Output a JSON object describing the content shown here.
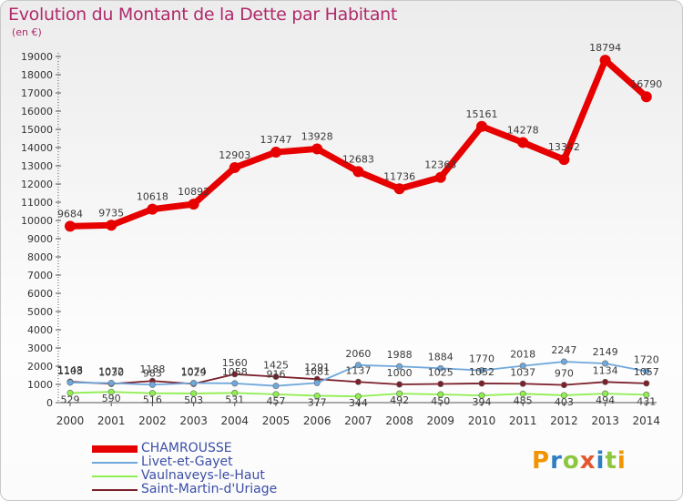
{
  "header": {
    "title": "Evolution du Montant de la Dette par Habitant",
    "unit": "(en €)"
  },
  "logo": {
    "text": "Proxiti",
    "colors": [
      "#f29400",
      "#2f7fc2",
      "#8dc63f",
      "#e4572e",
      "#2f7fc2",
      "#8dc63f",
      "#f29400"
    ]
  },
  "chart_data": {
    "type": "line",
    "x": [
      2000,
      2001,
      2002,
      2003,
      2004,
      2005,
      2006,
      2007,
      2008,
      2009,
      2010,
      2011,
      2012,
      2013,
      2014
    ],
    "ylim": [
      0,
      19000
    ],
    "yticks": [
      0,
      1000,
      2000,
      3000,
      4000,
      5000,
      6000,
      7000,
      8000,
      9000,
      10000,
      11000,
      12000,
      13000,
      14000,
      15000,
      16000,
      17000,
      18000,
      19000
    ],
    "grid": false,
    "legend_position": "bottom-left",
    "series": [
      {
        "name": "CHAMROUSSE",
        "color": "#e60000",
        "values": [
          9684,
          9735,
          10618,
          10892,
          12903,
          13747,
          13928,
          12683,
          11736,
          12363,
          15161,
          14278,
          13342,
          18794,
          16790
        ],
        "labels": [
          "9684",
          "9735",
          "10618",
          "10892",
          "12903",
          "13747",
          "13928",
          "12683",
          "11736",
          "12363",
          "15161",
          "14278",
          "13342",
          "18794",
          "16790"
        ]
      },
      {
        "name": "Livet-et-Gayet",
        "color": "#6fa8dc",
        "values": [
          1103,
          1072,
          983,
          1074,
          1058,
          916,
          1081,
          2060,
          1988,
          1884,
          1770,
          2018,
          2247,
          2149,
          1720
        ],
        "labels": [
          "1103",
          "1072",
          "983",
          "1074",
          "1058",
          "916",
          "1081",
          "2060",
          "1988",
          "1884",
          "1770",
          "2018",
          "2247",
          "2149",
          "1720"
        ]
      },
      {
        "name": "Vaulnaveys-le-Haut",
        "color": "#90ee50",
        "values": [
          529,
          590,
          516,
          503,
          531,
          457,
          377,
          344,
          492,
          450,
          394,
          485,
          403,
          494,
          431
        ],
        "labels": [
          "529",
          "590",
          "516",
          "503",
          "531",
          "457",
          "377",
          "344",
          "492",
          "450",
          "394",
          "485",
          "403",
          "494",
          "431"
        ]
      },
      {
        "name": "Saint-Martin-d'Uriage",
        "color": "#7b1f2a",
        "values": [
          1148,
          1030,
          1188,
          1029,
          1560,
          1425,
          1291,
          1137,
          1000,
          1025,
          1052,
          1037,
          970,
          1134,
          1057
        ],
        "labels": [
          "1148",
          "1030",
          "1188",
          "1029",
          "1560",
          "1425",
          "1291",
          "1137",
          "1000",
          "1025",
          "1052",
          "1037",
          "970",
          "1134",
          "1057"
        ]
      }
    ]
  }
}
